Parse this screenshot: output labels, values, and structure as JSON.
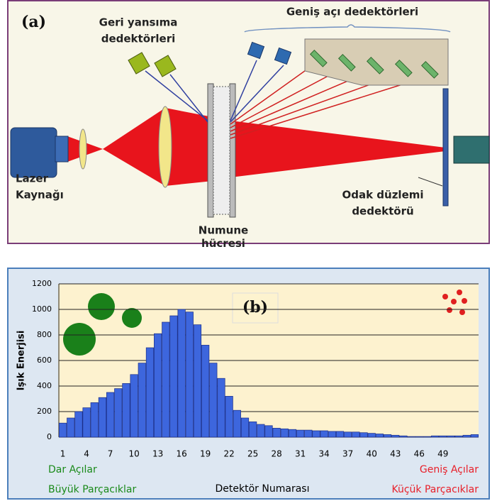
{
  "diagram": {
    "panel_label": "(a)",
    "backscatter_label": [
      "Geri yansıma",
      "dedektörleri"
    ],
    "wide_angle_label": "Geniş açı dedektörleri",
    "laser_label": [
      "Lazer",
      "Kaynağı"
    ],
    "sample_label": [
      "Numune",
      "hücresi"
    ],
    "focal_label": [
      "Odak düzlemi",
      "dedektörü"
    ]
  },
  "chart_data": {
    "type": "bar",
    "panel_label": "(b)",
    "y_label": "Işık Enerjisi",
    "x_label": "Detektör Numarası",
    "annotations": [
      {
        "text": "Dar Açılar",
        "color": "#1a8a1a"
      },
      {
        "text": "Büyük Parçacıklar",
        "color": "#1a8a1a"
      },
      {
        "text": "Geniş Açılar",
        "color": "#e8202a"
      },
      {
        "text": "Küçük Parçacıklar",
        "color": "#e8202a"
      }
    ],
    "categories": [
      "1",
      null,
      null,
      "4",
      null,
      null,
      "7",
      null,
      null,
      "10",
      null,
      null,
      "13",
      null,
      null,
      "16",
      null,
      null,
      "19",
      null,
      null,
      "22",
      null,
      null,
      "25",
      null,
      null,
      "28",
      null,
      null,
      "31",
      null,
      null,
      "34",
      null,
      null,
      "37",
      null,
      null,
      "40",
      null,
      null,
      "43",
      null,
      null,
      "46",
      null,
      null,
      "49",
      null,
      null,
      null,
      null
    ],
    "values": [
      110,
      150,
      200,
      230,
      270,
      310,
      350,
      380,
      420,
      490,
      580,
      700,
      810,
      900,
      950,
      1000,
      980,
      880,
      720,
      580,
      460,
      320,
      210,
      150,
      120,
      100,
      90,
      70,
      65,
      60,
      55,
      55,
      50,
      50,
      45,
      45,
      40,
      40,
      35,
      30,
      25,
      20,
      15,
      10,
      5,
      5,
      5,
      10,
      10,
      10,
      10,
      15,
      20
    ],
    "color": "#3d66dd",
    "ylim": [
      0,
      1200
    ],
    "yticks": [
      0,
      200,
      400,
      600,
      800,
      1000,
      1200
    ],
    "grid": true
  }
}
